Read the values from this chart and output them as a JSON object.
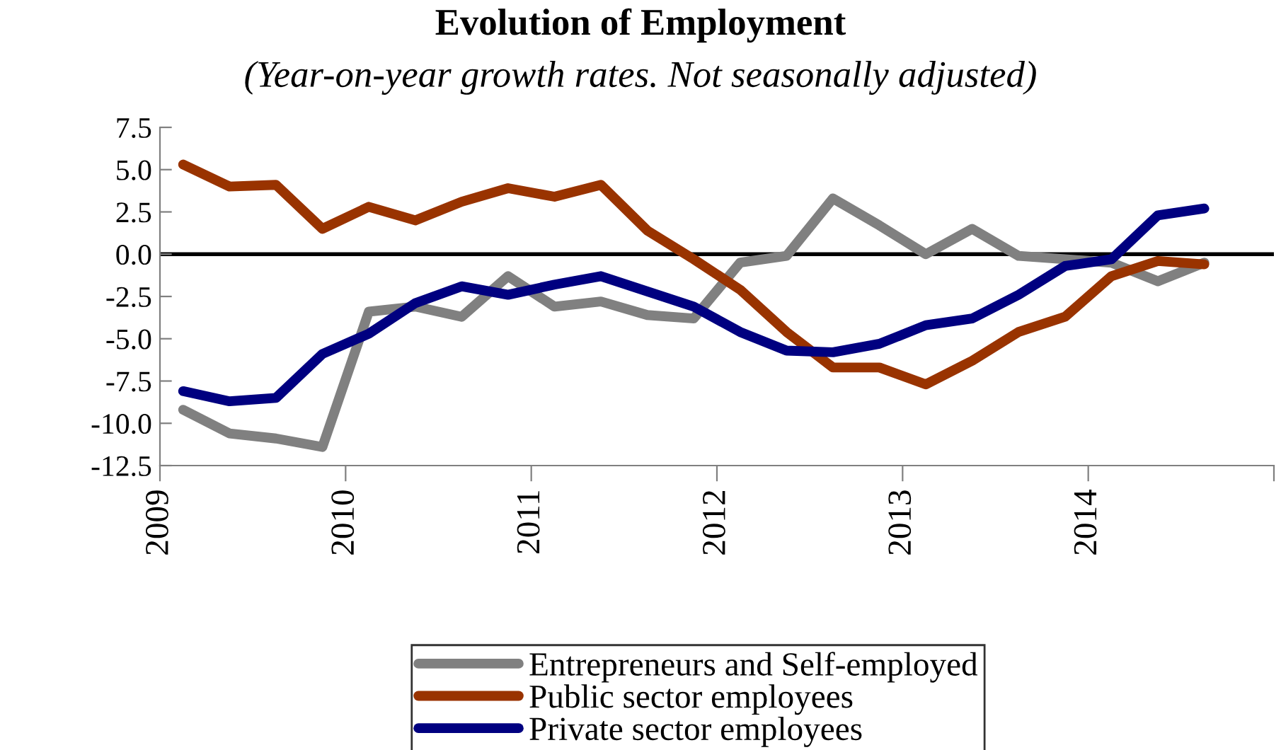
{
  "chart_data": {
    "type": "line",
    "title": "Evolution of Employment",
    "subtitle": "(Year-on-year growth rates. Not seasonally adjusted)",
    "x": [
      2009.125,
      2009.375,
      2009.625,
      2009.875,
      2010.125,
      2010.375,
      2010.625,
      2010.875,
      2011.125,
      2011.375,
      2011.625,
      2011.875,
      2012.125,
      2012.375,
      2012.625,
      2012.875,
      2013.125,
      2013.375,
      2013.625,
      2013.875,
      2014.125,
      2014.375,
      2014.625
    ],
    "series": [
      {
        "name": "Entrepreneurs and Self-employed",
        "color": "#808080",
        "values": [
          -9.2,
          -10.6,
          -10.9,
          -11.4,
          -3.4,
          -3.1,
          -3.7,
          -1.3,
          -3.1,
          -2.8,
          -3.6,
          -3.8,
          -0.5,
          -0.1,
          3.3,
          1.7,
          0.0,
          1.5,
          -0.1,
          -0.3,
          -0.5,
          -1.6,
          -0.5
        ]
      },
      {
        "name": "Public sector employees",
        "color": "#993300",
        "values": [
          5.3,
          4.0,
          4.1,
          1.5,
          2.8,
          2.0,
          3.1,
          3.9,
          3.4,
          4.1,
          1.4,
          -0.3,
          -2.1,
          -4.6,
          -6.7,
          -6.7,
          -7.7,
          -6.3,
          -4.6,
          -3.7,
          -1.3,
          -0.4,
          -0.6
        ]
      },
      {
        "name": "Private sector employees",
        "color": "#000080",
        "values": [
          -8.1,
          -8.7,
          -8.5,
          -5.9,
          -4.7,
          -2.9,
          -1.9,
          -2.4,
          -1.8,
          -1.3,
          -2.2,
          -3.1,
          -4.6,
          -5.7,
          -5.8,
          -5.3,
          -4.2,
          -3.8,
          -2.4,
          -0.7,
          -0.3,
          2.3,
          2.7
        ]
      }
    ],
    "xlim": [
      2009,
      2015
    ],
    "xticks": [
      {
        "value": 2009,
        "label": "2009"
      },
      {
        "value": 2010,
        "label": "2010"
      },
      {
        "value": 2011,
        "label": "2011"
      },
      {
        "value": 2012,
        "label": "2012"
      },
      {
        "value": 2013,
        "label": "2013"
      },
      {
        "value": 2014,
        "label": "2014"
      },
      {
        "value": 2015,
        "label": null
      }
    ],
    "ylim": [
      -12.5,
      7.5
    ],
    "yticks": [
      {
        "value": -12.5,
        "label": "-12.5"
      },
      {
        "value": -10,
        "label": "-10.0"
      },
      {
        "value": -7.5,
        "label": "-7.5"
      },
      {
        "value": -5,
        "label": "-5.0"
      },
      {
        "value": -2.5,
        "label": "-2.5"
      },
      {
        "value": 0,
        "label": "0.0"
      },
      {
        "value": 2.5,
        "label": "2.5"
      },
      {
        "value": 5,
        "label": "5.0"
      },
      {
        "value": 7.5,
        "label": "7.5"
      }
    ],
    "ref_lines": [
      {
        "axis": "y",
        "value": 0,
        "color": "#000000"
      }
    ],
    "grid": false,
    "legend": "bottom",
    "marker": "none",
    "line_style": "solid"
  }
}
